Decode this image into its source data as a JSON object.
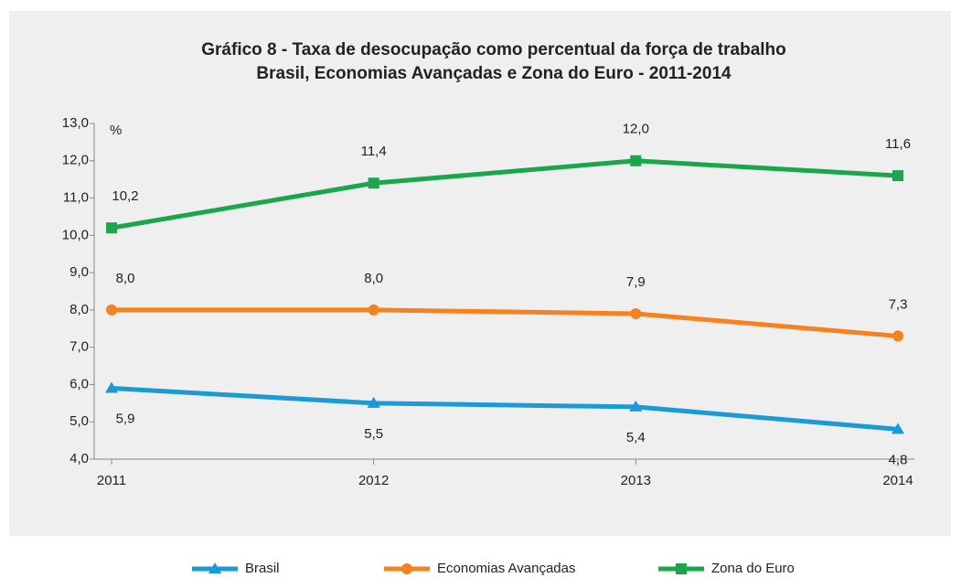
{
  "chart_data": {
    "type": "line",
    "title": "Gráfico 8 - Taxa de desocupação como percentual da força de trabalho",
    "subtitle": "Brasil, Economias Avançadas e Zona do Euro - 2011-2014",
    "y_label": "%",
    "categories": [
      "2011",
      "2012",
      "2013",
      "2014"
    ],
    "series": [
      {
        "name": "Brasil",
        "color": "#1a9ad6",
        "values": [
          5.9,
          5.5,
          5.4,
          4.8
        ],
        "value_labels": [
          "5,9",
          "5,5",
          "5,4",
          "4,8"
        ]
      },
      {
        "name": "Economias Avançadas",
        "color": "#f5821f",
        "values": [
          8.0,
          8.0,
          7.9,
          7.3
        ],
        "value_labels": [
          "8,0",
          "8,0",
          "7,9",
          "7,3"
        ]
      },
      {
        "name": "Zona do Euro",
        "color": "#1aa64a",
        "values": [
          10.2,
          11.4,
          12.0,
          11.6
        ],
        "value_labels": [
          "10,2",
          "11,4",
          "12,0",
          "11,6"
        ]
      }
    ],
    "ylim": [
      4,
      13
    ],
    "yticks": [
      {
        "value": 4,
        "label": "4,0"
      },
      {
        "value": 5,
        "label": "5,0"
      },
      {
        "value": 6,
        "label": "6,0"
      },
      {
        "value": 7,
        "label": "7,0"
      },
      {
        "value": 8,
        "label": "8,0"
      },
      {
        "value": 9,
        "label": "9,0"
      },
      {
        "value": 10,
        "label": "10,0"
      },
      {
        "value": 11,
        "label": "11,0"
      },
      {
        "value": 12,
        "label": "12,0"
      },
      {
        "value": 13,
        "label": "13,0"
      }
    ],
    "legend": "bottom"
  }
}
